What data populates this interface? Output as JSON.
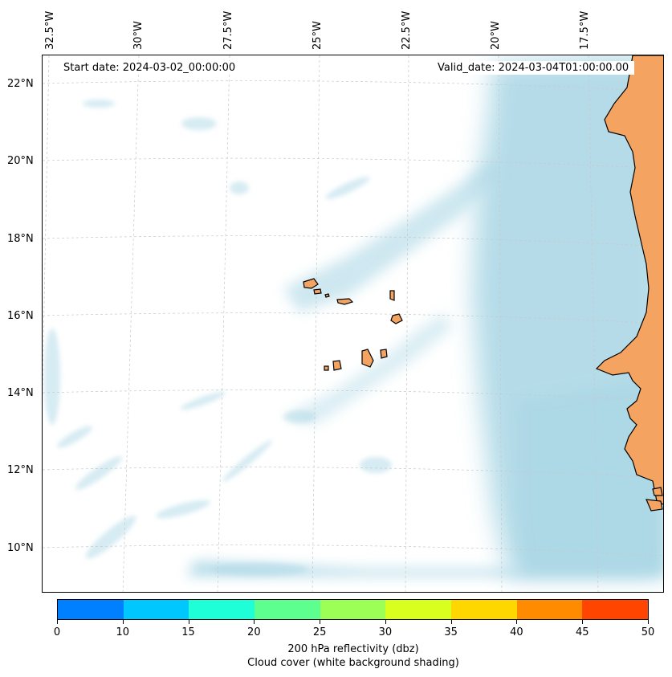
{
  "map": {
    "start_date": "Start date: 2024-03-02_00:00:00",
    "valid_date": "Valid_date: 2024-03-04T01:00:00.00",
    "lon_labels": [
      "32.5°W",
      "30°W",
      "27.5°W",
      "25°W",
      "22.5°W",
      "20°W",
      "17.5°W"
    ],
    "lat_labels": [
      "22°N",
      "20°N",
      "18°N",
      "16°N",
      "14°N",
      "12°N",
      "10°N"
    ],
    "colors": {
      "land": "#f4a460",
      "cloud": "#add8e6",
      "coastline": "#000000",
      "gridline": "#c8c8c8"
    }
  },
  "colorbar": {
    "colors": [
      "#007fff",
      "#00c8ff",
      "#1effd7",
      "#5dff8e",
      "#9cff55",
      "#d8ff1e",
      "#ffd700",
      "#ff8c00",
      "#ff4500"
    ],
    "tick_labels": [
      "0",
      "10",
      "15",
      "20",
      "25",
      "30",
      "35",
      "40",
      "45",
      "50"
    ],
    "caption_line1": "200 hPa reflectivity (dbz)",
    "caption_line2": "Cloud cover (white background shading)"
  }
}
